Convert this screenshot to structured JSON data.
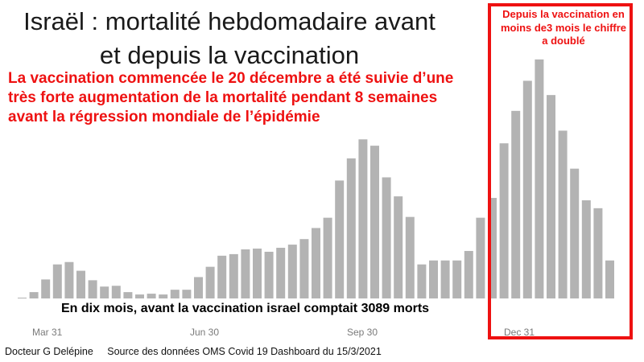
{
  "title": "Israël : mortalité hebdomadaire avant et depuis la vaccination",
  "annotations": {
    "vaccination_note": "La vaccination commencée le 20 décembre a été suivie d’une très forte  augmentation de la mortalité pendant 8 semaines avant la régression mondiale de l’épidémie",
    "box_note": "Depuis la vaccination en moins de3 mois le chiffre a doublé",
    "count_note": "En dix mois, avant la vaccination israel comptait 3089 morts"
  },
  "footer": {
    "author": "Docteur G Delépine",
    "source": "Source des données OMS Covid 19 Dashboard du 15/3/2021"
  },
  "colors": {
    "bars": "#b3b3b3",
    "highlight": "#ee1111",
    "text": "#1a1a1a"
  },
  "chart_data": {
    "type": "bar",
    "xlabel": "",
    "ylabel": "",
    "x_tick_labels": [
      "Mar 31",
      "Jun 30",
      "Sep 30",
      "Dec 31"
    ],
    "ylim": [
      0,
      310
    ],
    "grid": false,
    "values": [
      1,
      8,
      24,
      43,
      46,
      35,
      23,
      15,
      16,
      8,
      5,
      6,
      5,
      11,
      11,
      27,
      40,
      54,
      56,
      62,
      63,
      59,
      64,
      68,
      75,
      89,
      102,
      149,
      177,
      201,
      193,
      153,
      129,
      103,
      43,
      48,
      48,
      48,
      60,
      102,
      127,
      196,
      237,
      275,
      302,
      257,
      212,
      164,
      124,
      114,
      48
    ]
  }
}
